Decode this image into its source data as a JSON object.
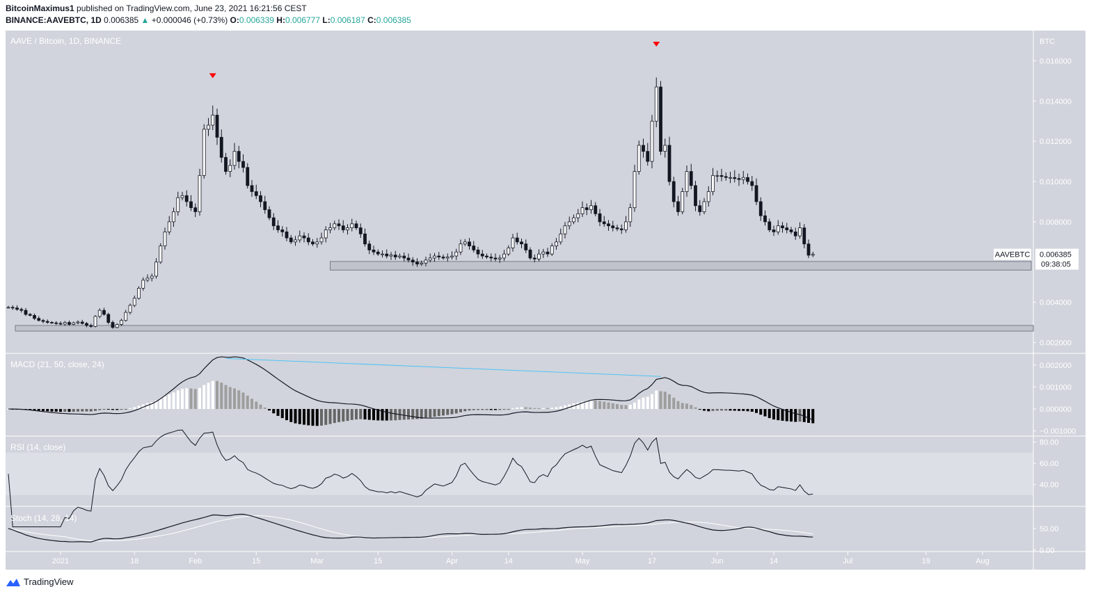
{
  "header": {
    "author": "BitcoinMaximus1",
    "published": "published on TradingView.com, June 23, 2021 16:21:56 CEST",
    "symbol": "BINANCE:AAVEBTC, 1D",
    "last": "0.006385",
    "change": "+0.000046 (+0.73%)",
    "o_label": "O:",
    "o": "0.006339",
    "h_label": "H:",
    "h": "0.006777",
    "l_label": "L:",
    "l": "0.006187",
    "c_label": "C:",
    "c": "0.006385"
  },
  "footer": {
    "brand": "TradingView"
  },
  "colors": {
    "pane_bg": "#d1d4dc",
    "up": "#ffffff",
    "down": "#131722",
    "marker": "#ff0000",
    "trendline": "#4fc3f7",
    "change_up": "#26a69a"
  },
  "chart_data": [
    {
      "type": "candlestick",
      "title": "AAVE / Bitcoin, 1D, BINANCE",
      "currency": "BTC",
      "start_date": "2020-12-20",
      "end_date": "2021-06-23",
      "closes": [
        0.00375,
        0.00372,
        0.00365,
        0.0036,
        0.0034,
        0.00335,
        0.0032,
        0.0031,
        0.00305,
        0.003,
        0.00298,
        0.00295,
        0.00292,
        0.003,
        0.0029,
        0.00298,
        0.00302,
        0.00295,
        0.00285,
        0.0028,
        0.0033,
        0.0036,
        0.0034,
        0.003,
        0.00275,
        0.0029,
        0.0031,
        0.0035,
        0.00385,
        0.0042,
        0.0047,
        0.0051,
        0.0052,
        0.0053,
        0.006,
        0.0068,
        0.0075,
        0.008,
        0.0085,
        0.0092,
        0.0093,
        0.009,
        0.0087,
        0.0085,
        0.0103,
        0.0126,
        0.0128,
        0.0133,
        0.0122,
        0.0112,
        0.0105,
        0.0108,
        0.0115,
        0.011,
        0.0107,
        0.0098,
        0.0095,
        0.0093,
        0.009,
        0.0086,
        0.0082,
        0.0078,
        0.0076,
        0.0075,
        0.0072,
        0.007,
        0.0071,
        0.0073,
        0.0072,
        0.007,
        0.0069,
        0.007,
        0.0072,
        0.0076,
        0.0077,
        0.0079,
        0.0078,
        0.0076,
        0.0077,
        0.0079,
        0.0077,
        0.0074,
        0.0069,
        0.0066,
        0.0065,
        0.0064,
        0.0064,
        0.0063,
        0.00635,
        0.00625,
        0.0063,
        0.0062,
        0.0061,
        0.006,
        0.0059,
        0.00595,
        0.0061,
        0.0062,
        0.0063,
        0.00625,
        0.0062,
        0.00625,
        0.0063,
        0.0065,
        0.0069,
        0.007,
        0.0068,
        0.0066,
        0.0064,
        0.0063,
        0.00625,
        0.0062,
        0.00615,
        0.0062,
        0.0064,
        0.0067,
        0.0072,
        0.007,
        0.0069,
        0.0066,
        0.0062,
        0.00615,
        0.0064,
        0.0065,
        0.0064,
        0.0068,
        0.007,
        0.0074,
        0.0078,
        0.008,
        0.0082,
        0.0084,
        0.0087,
        0.0086,
        0.0088,
        0.0084,
        0.008,
        0.0079,
        0.0078,
        0.0077,
        0.00765,
        0.0076,
        0.008,
        0.0087,
        0.0105,
        0.0118,
        0.0115,
        0.011,
        0.013,
        0.0147,
        0.0115,
        0.0118,
        0.01,
        0.009,
        0.0085,
        0.0095,
        0.0105,
        0.0098,
        0.0088,
        0.0085,
        0.009,
        0.0095,
        0.0103,
        0.0103,
        0.01025,
        0.0102,
        0.0102,
        0.01015,
        0.0101,
        0.0102,
        0.01,
        0.0098,
        0.009,
        0.0083,
        0.008,
        0.0076,
        0.0075,
        0.0078,
        0.0077,
        0.0076,
        0.0075,
        0.0073,
        0.0077,
        0.0069,
        0.00634,
        0.006385
      ],
      "yticks": [
        "0.016000",
        "0.014000",
        "0.012000",
        "0.010000",
        "0.008000",
        "0.004000",
        "0.002000"
      ],
      "ylim": [
        0.0015,
        0.0175
      ],
      "last_label": {
        "symbol": "AAVEBTC",
        "price": "0.006385",
        "countdown": "09:38:05"
      },
      "zones": [
        {
          "from": 0.0056,
          "to": 0.00603
        },
        {
          "from": 0.00257,
          "to": 0.00285
        }
      ],
      "markers": [
        {
          "date": "2021-02-05",
          "shape": "triangle-down"
        },
        {
          "date": "2021-05-18",
          "shape": "triangle-down"
        }
      ]
    },
    {
      "type": "line",
      "title": "MACD (21, 50, close, 24)",
      "yticks": [
        "0.002000",
        "0.001000",
        "0.000000",
        "−0.001000"
      ],
      "ylim": [
        -0.0012,
        0.0025
      ],
      "trendline": [
        {
          "date": "2021-02-08",
          "value": 0.0023
        },
        {
          "date": "2021-05-19",
          "value": 0.00148
        }
      ]
    },
    {
      "type": "line",
      "title": "RSI (14, close)",
      "yticks": [
        "80.00",
        "60.00",
        "40.00"
      ],
      "ylim": [
        20,
        85
      ],
      "band": [
        30,
        70
      ]
    },
    {
      "type": "line",
      "title": "Stoch (14, 28, 14)",
      "yticks": [
        "50.00",
        "0.00"
      ],
      "ylim": [
        -2,
        100
      ]
    },
    {
      "type": "axis",
      "xticks": [
        {
          "label": "2021",
          "date": "2021-01-01"
        },
        {
          "label": "18",
          "date": "2021-01-18"
        },
        {
          "label": "Feb",
          "date": "2021-02-01"
        },
        {
          "label": "15",
          "date": "2021-02-15"
        },
        {
          "label": "Mar",
          "date": "2021-03-01"
        },
        {
          "label": "15",
          "date": "2021-03-15"
        },
        {
          "label": "Apr",
          "date": "2021-04-01"
        },
        {
          "label": "14",
          "date": "2021-04-14"
        },
        {
          "label": "May",
          "date": "2021-05-01"
        },
        {
          "label": "17",
          "date": "2021-05-17"
        },
        {
          "label": "Jun",
          "date": "2021-06-01"
        },
        {
          "label": "14",
          "date": "2021-06-14"
        },
        {
          "label": "Jul",
          "date": "2021-07-01"
        },
        {
          "label": "19",
          "date": "2021-07-19"
        },
        {
          "label": "Aug",
          "date": "2021-08-01"
        }
      ]
    }
  ]
}
